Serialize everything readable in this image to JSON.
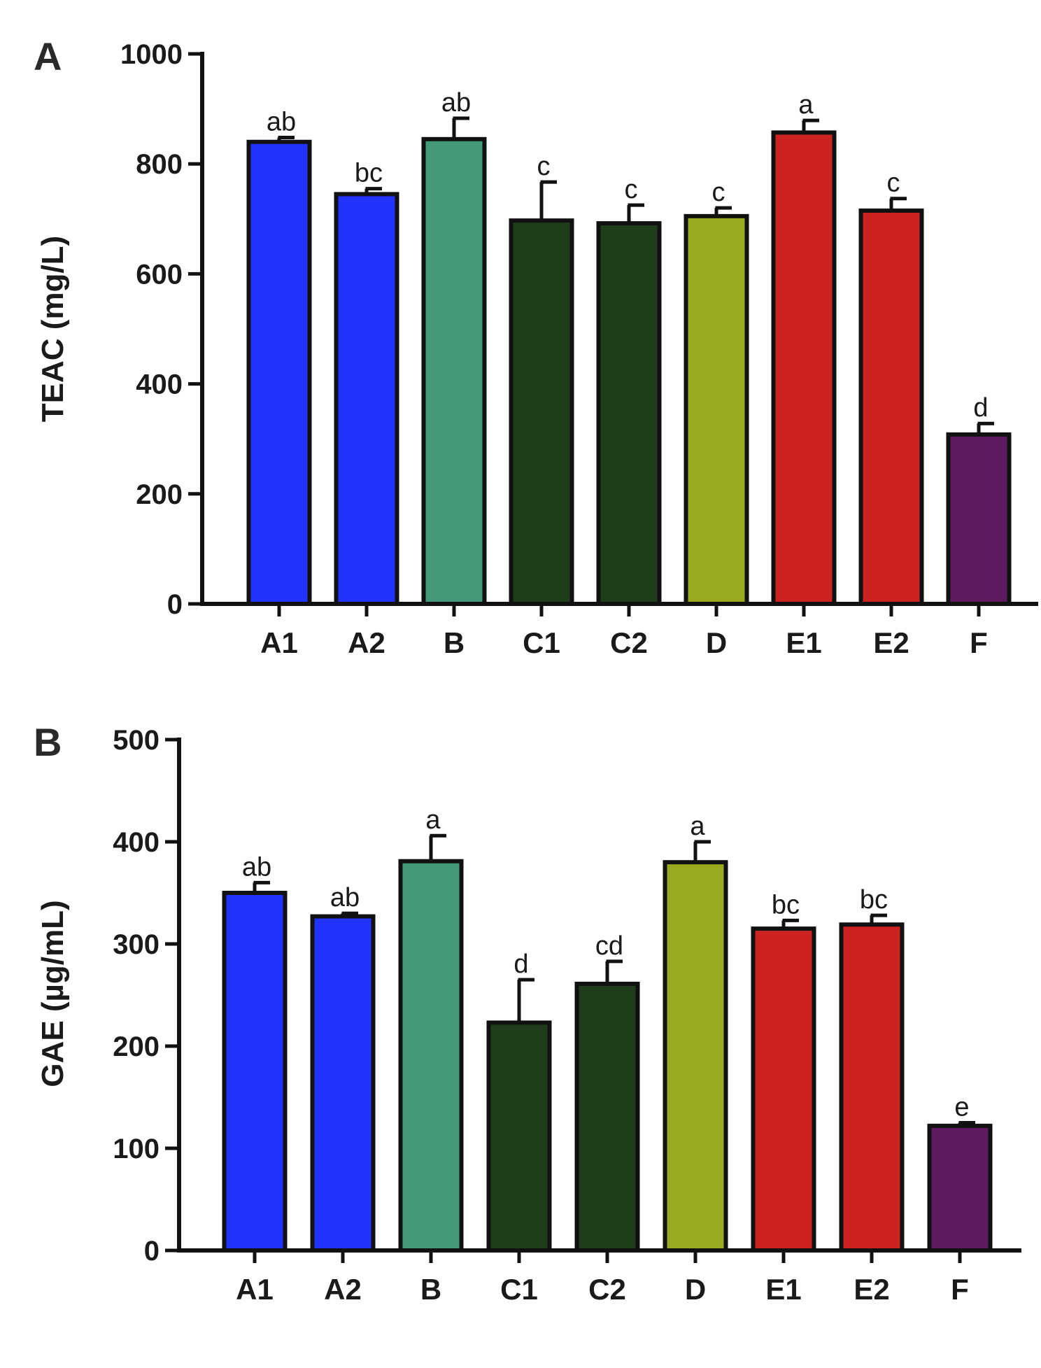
{
  "chart_data": [
    {
      "type": "bar",
      "panel": "A",
      "ylabel": "TEAC (mg/L)",
      "ylim": [
        0,
        1000
      ],
      "yticks": [
        0,
        200,
        400,
        600,
        800,
        1000
      ],
      "categories": [
        "A1",
        "A2",
        "B",
        "C1",
        "C2",
        "D",
        "E1",
        "E2",
        "F"
      ],
      "values": [
        840,
        745,
        845,
        697,
        692,
        705,
        857,
        715,
        308
      ],
      "errors": [
        8,
        10,
        38,
        70,
        33,
        15,
        22,
        22,
        20
      ],
      "significance": [
        "ab",
        "bc",
        "ab",
        "c",
        "c",
        "c",
        "a",
        "c",
        "d"
      ],
      "colors": [
        "#2233ff",
        "#2233ff",
        "#449a78",
        "#1f3d1b",
        "#1f3d1b",
        "#9aaa20",
        "#cc2222",
        "#cc2222",
        "#5e1a5e"
      ]
    },
    {
      "type": "bar",
      "panel": "B",
      "ylabel": "GAE (µg/mL)",
      "ylim": [
        0,
        500
      ],
      "yticks": [
        0,
        100,
        200,
        300,
        400,
        500
      ],
      "categories": [
        "A1",
        "A2",
        "B",
        "C1",
        "C2",
        "D",
        "E1",
        "E2",
        "F"
      ],
      "values": [
        350,
        327,
        381,
        223,
        261,
        380,
        315,
        319,
        122
      ],
      "errors": [
        10,
        3,
        25,
        42,
        22,
        20,
        8,
        9,
        3
      ],
      "significance": [
        "ab",
        "ab",
        "a",
        "d",
        "cd",
        "a",
        "bc",
        "bc",
        "e"
      ],
      "colors": [
        "#2233ff",
        "#2233ff",
        "#449a78",
        "#1f3d1b",
        "#1f3d1b",
        "#9aaa20",
        "#cc2222",
        "#cc2222",
        "#5e1a5e"
      ]
    }
  ]
}
